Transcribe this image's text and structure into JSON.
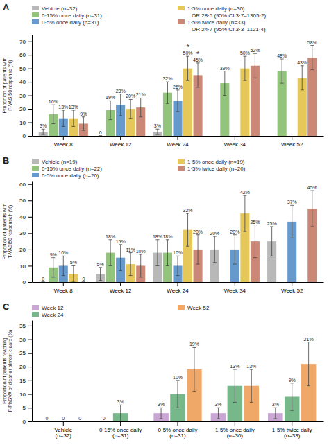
{
  "chart_data": [
    {
      "type": "bar",
      "title": "A",
      "y_label": "Proportion of patients with\nF-VASI50 response (%)",
      "categories": [
        "Week 8",
        "Week 12",
        "Week 24",
        "Week 34",
        "Week 52"
      ],
      "series": [
        {
          "name": "Vehicle (n=32)",
          "color": "#b8b8b8",
          "values": [
            3,
            0,
            3,
            null,
            null
          ],
          "errors": [
            2,
            0,
            2,
            null,
            null
          ],
          "value_labels": [
            "3%",
            "0",
            "3%",
            null,
            null
          ]
        },
        {
          "name": "0·15% once daily (n=31)",
          "color": "#92c47c",
          "values": [
            16,
            19,
            32,
            39,
            48
          ],
          "errors": [
            7,
            7,
            8,
            9,
            9
          ],
          "value_labels": [
            "16%",
            "19%",
            "32%",
            "39%",
            "48%"
          ]
        },
        {
          "name": "0·5% once daily (n=31)",
          "color": "#6699cc",
          "values": [
            13,
            23,
            26,
            null,
            null
          ],
          "errors": [
            6,
            8,
            8,
            null,
            null
          ],
          "value_labels": [
            "13%",
            "23%",
            "26%",
            null,
            null
          ]
        },
        {
          "name": "1·5% once daily (n=30)",
          "color": "#e6c85a",
          "values": [
            13,
            20,
            50,
            50,
            43
          ],
          "errors": [
            6,
            7,
            9,
            9,
            9
          ],
          "value_labels": [
            "13%",
            "20%",
            "50%",
            "50%",
            "43%"
          ],
          "legend_note": "OR 28·5 (95% CI 3·7–1305·2)"
        },
        {
          "name": "1·5% twice daily (n=33)",
          "color": "#cc8877",
          "values": [
            9,
            21,
            45,
            52,
            58
          ],
          "errors": [
            5,
            7,
            9,
            9,
            9
          ],
          "value_labels": [
            "9%",
            "21%",
            "45%",
            "52%",
            "58%"
          ],
          "legend_note": "OR 24·7 (95% CI 3·3–1121·4)"
        }
      ],
      "annotations": [
        {
          "text": "*",
          "category": "Week 24",
          "series": "1·5% once daily (n=30)"
        },
        {
          "text": "*",
          "category": "Week 24",
          "series": "1·5% twice daily (n=33)"
        }
      ],
      "ylim": [
        0,
        75
      ],
      "yticks": [
        0,
        10,
        20,
        30,
        40,
        50,
        60,
        70
      ],
      "grid": false,
      "data_labels": true
    },
    {
      "type": "bar",
      "title": "B",
      "y_label": "Proportion of patients with\nT-VASI50 response† (%)",
      "categories": [
        "Week 8",
        "Week 12",
        "Week 24",
        "Week 34",
        "Week 52"
      ],
      "series": [
        {
          "name": "Vehicle (n=19)",
          "color": "#b8b8b8",
          "values": [
            0,
            5,
            18,
            20,
            25
          ],
          "errors": [
            0,
            4,
            8,
            8,
            9
          ],
          "value_labels": [
            "0",
            "5%",
            "18%",
            "20%",
            "25%"
          ]
        },
        {
          "name": "0·15% once daily (n=22)",
          "color": "#92c47c",
          "values": [
            9,
            18,
            18,
            null,
            null
          ],
          "errors": [
            6,
            8,
            8,
            null,
            null
          ],
          "value_labels": [
            "9%",
            "18%",
            "18%",
            null,
            null
          ]
        },
        {
          "name": "0·5% once daily (n=20)",
          "color": "#6699cc",
          "values": [
            10,
            15,
            10,
            20,
            37
          ],
          "errors": [
            6,
            8,
            6,
            9,
            10
          ],
          "value_labels": [
            "10%",
            "15%",
            "10%",
            "20%",
            "37%"
          ]
        },
        {
          "name": "1·5% once daily (n=19)",
          "color": "#e6c85a",
          "values": [
            5,
            11,
            32,
            42,
            null
          ],
          "errors": [
            5,
            7,
            10,
            11,
            null
          ],
          "value_labels": [
            "5%",
            "11%",
            "32%",
            "42%",
            null
          ]
        },
        {
          "name": "1·5% twice daily (n=20)",
          "color": "#cc8877",
          "values": [
            0,
            10,
            20,
            25,
            45
          ],
          "errors": [
            0,
            7,
            9,
            10,
            11
          ],
          "value_labels": [
            "0",
            "10%",
            "20%",
            "25%",
            "45%"
          ]
        }
      ],
      "ylim": [
        0,
        62
      ],
      "yticks": [
        0,
        10,
        20,
        30,
        40,
        50,
        60
      ],
      "grid": false,
      "data_labels": true
    },
    {
      "type": "bar",
      "title": "C",
      "y_label": "Proportion of patients reaching\nF-PhGVA of clear or almost clear‡ (%)",
      "categories": [
        "Vehicle\n(n=32)",
        "0·15% once daily\n(n=31)",
        "0·5% once daily\n(n=31)",
        "1·5% once daily\n(n=30)",
        "1·5% twice daily\n(n=33)"
      ],
      "series": [
        {
          "name": "Week 12",
          "color": "#c9a6d4",
          "values": [
            0,
            0,
            3,
            3,
            3
          ],
          "errors": [
            0,
            0,
            2,
            2,
            2
          ],
          "value_labels": [
            "0",
            "0",
            "3%",
            "3%",
            "3%"
          ]
        },
        {
          "name": "Week 24",
          "color": "#77b88a",
          "values": [
            0,
            3,
            10,
            13,
            9
          ],
          "errors": [
            0,
            3,
            5,
            6,
            5
          ],
          "value_labels": [
            "0",
            "3%",
            "10%",
            "13%",
            "9%"
          ]
        },
        {
          "name": "Week 52",
          "color": "#f0a868",
          "values": [
            0,
            null,
            19,
            13,
            21
          ],
          "errors": [
            0,
            null,
            8,
            6,
            8
          ],
          "value_labels": [
            "0",
            null,
            "19%",
            "13%",
            "21%"
          ]
        }
      ],
      "ylim": [
        0,
        37
      ],
      "yticks": [
        0,
        5,
        10,
        15,
        20,
        25,
        30,
        35
      ],
      "grid": false,
      "data_labels": true
    }
  ]
}
